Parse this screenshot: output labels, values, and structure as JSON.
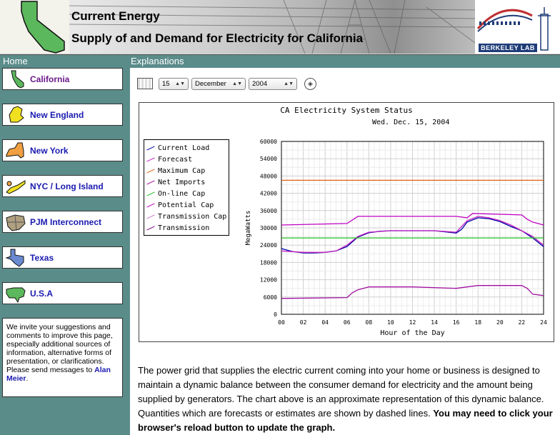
{
  "header": {
    "title": "Current Energy",
    "subtitle": "Supply of and Demand for Electricity for California",
    "logo_text": "BERKELEY LAB"
  },
  "nav": {
    "home": "Home",
    "explanations": "Explanations"
  },
  "sidebar": {
    "items": [
      {
        "label": "California",
        "icon": "california-map-icon",
        "color": "#5cb85c"
      },
      {
        "label": "New England",
        "icon": "new-england-map-icon",
        "color": "#f0e020"
      },
      {
        "label": "New York",
        "icon": "new-york-map-icon",
        "color": "#f0a040"
      },
      {
        "label": "NYC / Long Island",
        "icon": "long-island-map-icon",
        "color": "#f0e020"
      },
      {
        "label": "PJM Interconnect",
        "icon": "pjm-map-icon",
        "color": "#b0a080"
      },
      {
        "label": "Texas",
        "icon": "texas-map-icon",
        "color": "#6a8ad0"
      },
      {
        "label": "U.S.A",
        "icon": "usa-map-icon",
        "color": "#5cb85c"
      }
    ],
    "invite_text": "We invite your suggestions and comments to improve this page, especially additional sources of information, alternative forms of presentation, or clarifications. Please send messages to ",
    "invite_link": "Alan Meier",
    "invite_end": "."
  },
  "date_selector": {
    "day": "15",
    "month": "December",
    "year": "2004"
  },
  "description": {
    "text": "The power grid that supplies the electric current coming into your home or business is designed to maintain a dynamic balance between the consumer demand for electricity and the amount being supplied by generators. The chart above is an approximate representation of this dynamic balance. Quantities which are forecasts or estimates are shown by dashed lines. ",
    "bold": "You may need to click your browser's reload button to update the graph."
  },
  "chart_data": {
    "type": "line",
    "title": "CA Electricity System Status",
    "subtitle": "Wed. Dec. 15, 2004",
    "xlabel": "Hour of the Day",
    "ylabel": "MegaWatts",
    "xlim": [
      0,
      24
    ],
    "ylim": [
      0,
      60000
    ],
    "x_ticks": [
      "00",
      "02",
      "04",
      "06",
      "08",
      "10",
      "12",
      "14",
      "16",
      "18",
      "20",
      "22",
      "24"
    ],
    "y_ticks": [
      "0",
      "6000",
      "12000",
      "18000",
      "24000",
      "30000",
      "36000",
      "42000",
      "48000",
      "54000",
      "60000"
    ],
    "legend": [
      "Current Load",
      "Forecast",
      "Maximum Cap",
      "Net Imports",
      "On-line Cap",
      "Potential Cap",
      "Transmission Cap",
      "Transmission"
    ],
    "series": [
      {
        "name": "Current Load",
        "color": "#0000aa",
        "points": [
          [
            0,
            22800
          ],
          [
            1,
            21800
          ],
          [
            2,
            21300
          ],
          [
            3,
            21300
          ],
          [
            4,
            21500
          ],
          [
            5,
            22000
          ],
          [
            6,
            23500
          ],
          [
            7,
            26800
          ],
          [
            8,
            28300
          ],
          [
            9,
            28800
          ],
          [
            10,
            29000
          ],
          [
            11,
            29000
          ],
          [
            12,
            29000
          ],
          [
            13,
            29000
          ],
          [
            14,
            29000
          ],
          [
            15,
            28600
          ],
          [
            16,
            28200
          ],
          [
            16.5,
            29500
          ],
          [
            17,
            32000
          ],
          [
            18,
            33500
          ],
          [
            19,
            33200
          ],
          [
            20,
            32200
          ],
          [
            21,
            30500
          ],
          [
            22,
            29000
          ],
          [
            23,
            26500
          ],
          [
            24,
            23500
          ]
        ]
      },
      {
        "name": "Forecast",
        "color": "#c020c0",
        "points": [
          [
            0,
            22000
          ],
          [
            2,
            21500
          ],
          [
            4,
            21500
          ],
          [
            5,
            22000
          ],
          [
            6,
            24000
          ],
          [
            7,
            27000
          ],
          [
            8,
            28500
          ],
          [
            10,
            29000
          ],
          [
            14,
            29000
          ],
          [
            16,
            28500
          ],
          [
            17,
            32500
          ],
          [
            18,
            34000
          ],
          [
            19,
            33500
          ],
          [
            20,
            32500
          ],
          [
            21,
            31000
          ],
          [
            22,
            29000
          ],
          [
            23,
            27000
          ],
          [
            24,
            24000
          ]
        ]
      },
      {
        "name": "Maximum Cap",
        "color": "#e06010",
        "points": [
          [
            0,
            46500
          ],
          [
            24,
            46500
          ]
        ]
      },
      {
        "name": "Net Imports",
        "color": "#a010a0",
        "points": [
          [
            0,
            5500
          ],
          [
            6,
            5800
          ],
          [
            6.5,
            7500
          ],
          [
            7,
            8500
          ],
          [
            8,
            9500
          ],
          [
            12,
            9500
          ],
          [
            16,
            9000
          ],
          [
            17,
            9500
          ],
          [
            18,
            10000
          ],
          [
            22,
            10000
          ],
          [
            22.5,
            9000
          ],
          [
            23,
            7000
          ],
          [
            24,
            6500
          ]
        ]
      },
      {
        "name": "On-line Cap",
        "color": "#20c020",
        "points": [
          [
            0,
            26500
          ],
          [
            24,
            26500
          ]
        ]
      },
      {
        "name": "Potential Cap",
        "color": "#c000c0",
        "points": [
          [
            0,
            31000
          ],
          [
            6,
            31500
          ],
          [
            7,
            34000
          ],
          [
            16,
            34000
          ],
          [
            17,
            33500
          ],
          [
            17.5,
            35000
          ],
          [
            22,
            34500
          ],
          [
            22.5,
            33000
          ],
          [
            23,
            32000
          ],
          [
            24,
            31000
          ]
        ]
      },
      {
        "name": "Transmission Cap",
        "color": "#d070d0",
        "points": []
      },
      {
        "name": "Transmission",
        "color": "#800080",
        "points": []
      }
    ]
  }
}
